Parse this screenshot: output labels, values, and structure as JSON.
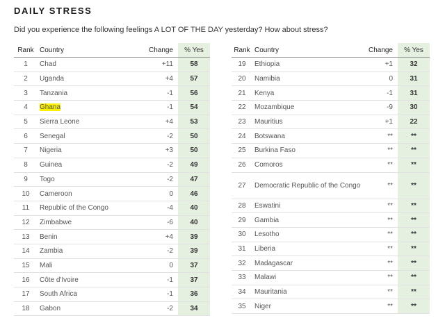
{
  "header": {
    "title": "DAILY STRESS",
    "subtitle": "Did you experience the following feelings A LOT OF THE DAY yesterday? How about stress?"
  },
  "chart_data": {
    "type": "table",
    "title": "DAILY STRESS",
    "subtitle": "Did you experience the following feelings A LOT OF THE DAY yesterday? How about stress?",
    "columns": [
      "Rank",
      "Country",
      "Change",
      "% Yes"
    ],
    "highlight": {
      "country": "Ghana",
      "color": "#fbf100"
    },
    "accent_color": "#e6f0e1",
    "rows": [
      {
        "rank": "1",
        "country": "Chad",
        "change": "+11",
        "pct": "58"
      },
      {
        "rank": "2",
        "country": "Uganda",
        "change": "+4",
        "pct": "57"
      },
      {
        "rank": "3",
        "country": "Tanzania",
        "change": "-1",
        "pct": "56"
      },
      {
        "rank": "4",
        "country": "Ghana",
        "change": "-1",
        "pct": "54"
      },
      {
        "rank": "5",
        "country": "Sierra Leone",
        "change": "+4",
        "pct": "53"
      },
      {
        "rank": "6",
        "country": "Senegal",
        "change": "-2",
        "pct": "50"
      },
      {
        "rank": "7",
        "country": "Nigeria",
        "change": "+3",
        "pct": "50"
      },
      {
        "rank": "8",
        "country": "Guinea",
        "change": "-2",
        "pct": "49"
      },
      {
        "rank": "9",
        "country": "Togo",
        "change": "-2",
        "pct": "47"
      },
      {
        "rank": "10",
        "country": "Cameroon",
        "change": "0",
        "pct": "46"
      },
      {
        "rank": "11",
        "country": "Republic of the Congo",
        "change": "-4",
        "pct": "40"
      },
      {
        "rank": "12",
        "country": "Zimbabwe",
        "change": "-6",
        "pct": "40"
      },
      {
        "rank": "13",
        "country": "Benin",
        "change": "+4",
        "pct": "39"
      },
      {
        "rank": "14",
        "country": "Zambia",
        "change": "-2",
        "pct": "39"
      },
      {
        "rank": "15",
        "country": "Mali",
        "change": "0",
        "pct": "37"
      },
      {
        "rank": "16",
        "country": "Côte d'Ivoire",
        "change": "-1",
        "pct": "37"
      },
      {
        "rank": "17",
        "country": "South Africa",
        "change": "-1",
        "pct": "36"
      },
      {
        "rank": "18",
        "country": "Gabon",
        "change": "-2",
        "pct": "34"
      },
      {
        "rank": "19",
        "country": "Ethiopia",
        "change": "+1",
        "pct": "32"
      },
      {
        "rank": "20",
        "country": "Namibia",
        "change": "0",
        "pct": "31"
      },
      {
        "rank": "21",
        "country": "Kenya",
        "change": "-1",
        "pct": "31"
      },
      {
        "rank": "22",
        "country": "Mozambique",
        "change": "-9",
        "pct": "30"
      },
      {
        "rank": "23",
        "country": "Mauritius",
        "change": "+1",
        "pct": "22"
      },
      {
        "rank": "24",
        "country": "Botswana",
        "change": "**",
        "pct": "**"
      },
      {
        "rank": "25",
        "country": "Burkina Faso",
        "change": "**",
        "pct": "**"
      },
      {
        "rank": "26",
        "country": "Comoros",
        "change": "**",
        "pct": "**"
      },
      {
        "rank": "27",
        "country": "Democratic Republic of the Congo",
        "change": "**",
        "pct": "**"
      },
      {
        "rank": "28",
        "country": "Eswatini",
        "change": "**",
        "pct": "**"
      },
      {
        "rank": "29",
        "country": "Gambia",
        "change": "**",
        "pct": "**"
      },
      {
        "rank": "30",
        "country": "Lesotho",
        "change": "**",
        "pct": "**"
      },
      {
        "rank": "31",
        "country": "Liberia",
        "change": "**",
        "pct": "**"
      },
      {
        "rank": "32",
        "country": "Madagascar",
        "change": "**",
        "pct": "**"
      },
      {
        "rank": "33",
        "country": "Malawi",
        "change": "**",
        "pct": "**"
      },
      {
        "rank": "34",
        "country": "Mauritania",
        "change": "**",
        "pct": "**"
      },
      {
        "rank": "35",
        "country": "Niger",
        "change": "**",
        "pct": "**"
      }
    ]
  }
}
